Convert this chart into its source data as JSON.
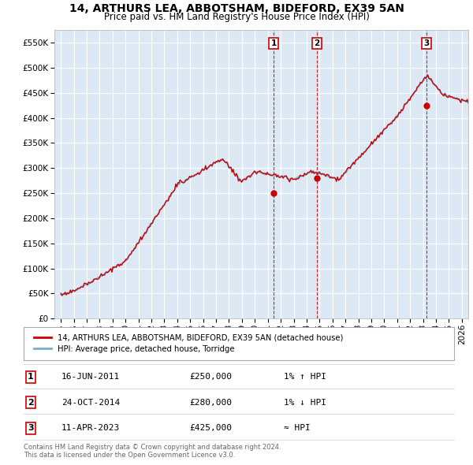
{
  "title": "14, ARTHURS LEA, ABBOTSHAM, BIDEFORD, EX39 5AN",
  "subtitle": "Price paid vs. HM Land Registry's House Price Index (HPI)",
  "legend_label_red": "14, ARTHURS LEA, ABBOTSHAM, BIDEFORD, EX39 5AN (detached house)",
  "legend_label_blue": "HPI: Average price, detached house, Torridge",
  "transactions": [
    {
      "num": 1,
      "date_x": 2011.46,
      "price": 250000,
      "label": "1",
      "note": "1% ↑ HPI",
      "date_str": "16-JUN-2011"
    },
    {
      "num": 2,
      "date_x": 2014.81,
      "price": 280000,
      "label": "2",
      "note": "1% ↓ HPI",
      "date_str": "24-OCT-2014"
    },
    {
      "num": 3,
      "date_x": 2023.27,
      "price": 425000,
      "label": "3",
      "note": "≈ HPI",
      "date_str": "11-APR-2023"
    }
  ],
  "footer": "Contains HM Land Registry data © Crown copyright and database right 2024.\nThis data is licensed under the Open Government Licence v3.0.",
  "background_color": "#ffffff",
  "plot_bg_color": "#dce9f5",
  "grid_color": "#ffffff",
  "red_line_color": "#cc0000",
  "blue_line_color": "#7aadcf",
  "vline_color": "#cc0000",
  "marker_color": "#cc0000",
  "ylim": [
    0,
    575000
  ],
  "yticks": [
    0,
    50000,
    100000,
    150000,
    200000,
    250000,
    300000,
    350000,
    400000,
    450000,
    500000,
    550000
  ],
  "xlim_start": 1994.5,
  "xlim_end": 2026.5,
  "xticks": [
    1995,
    1996,
    1997,
    1998,
    1999,
    2000,
    2001,
    2002,
    2003,
    2004,
    2005,
    2006,
    2007,
    2008,
    2009,
    2010,
    2011,
    2012,
    2013,
    2014,
    2015,
    2016,
    2017,
    2018,
    2019,
    2020,
    2021,
    2022,
    2023,
    2024,
    2025,
    2026
  ]
}
